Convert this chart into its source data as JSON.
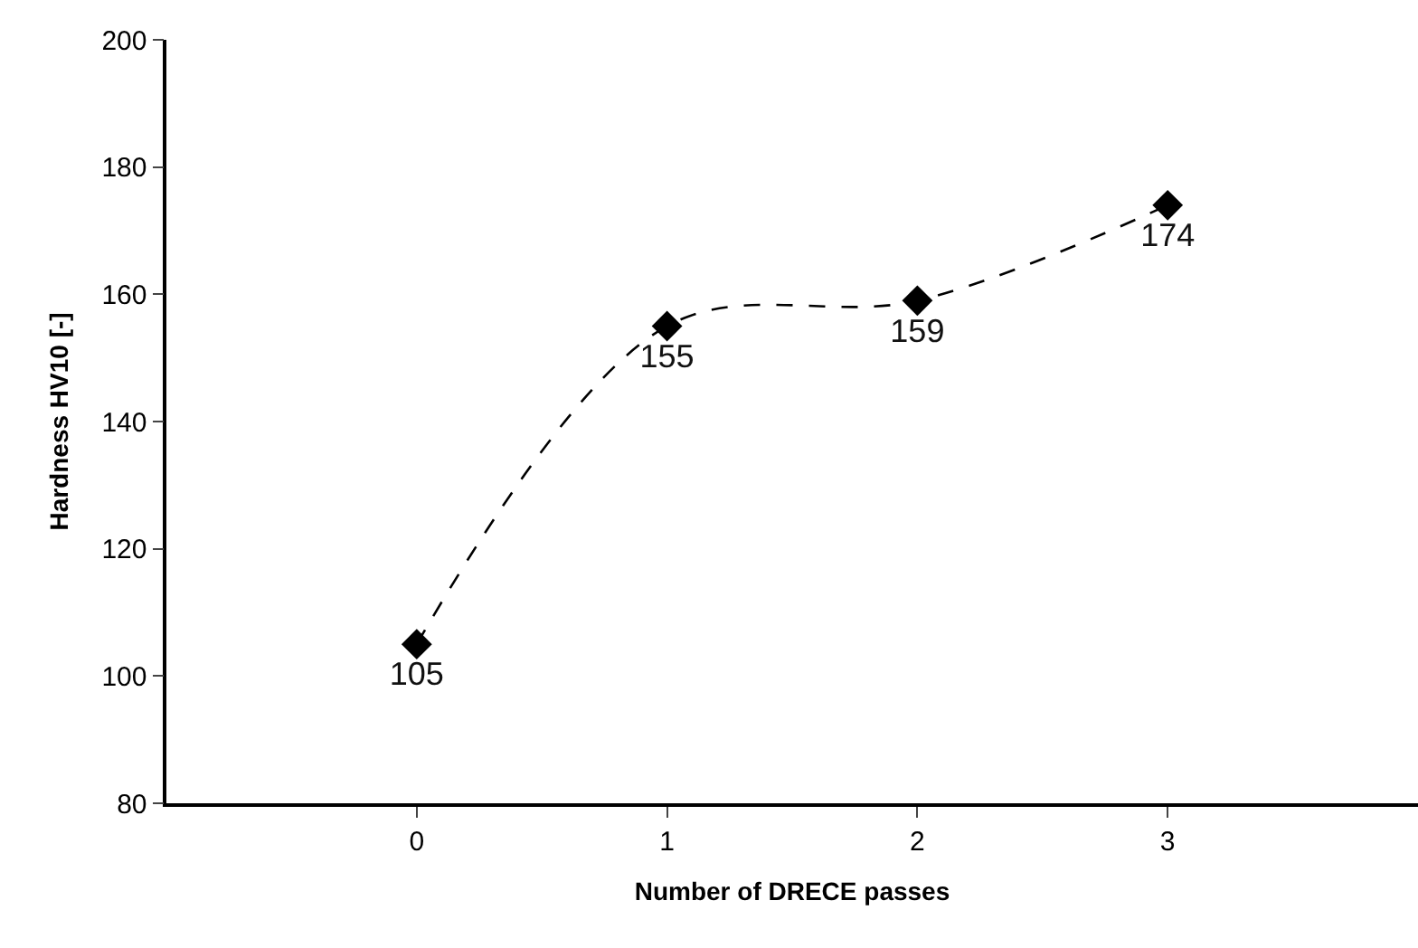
{
  "chart_data": {
    "type": "line",
    "xlabel": "Number of DRECE passes",
    "ylabel": "Hardness HV10 [-]",
    "x": [
      0,
      1,
      2,
      3
    ],
    "series": [
      {
        "color": "#000000",
        "values": [
          105,
          155,
          159,
          174
        ]
      }
    ],
    "xlim": [
      -1,
      4
    ],
    "xticks": [
      0,
      1,
      2,
      3
    ],
    "ylim": [
      80,
      200
    ],
    "yticks": [
      80,
      100,
      120,
      140,
      160,
      180,
      200
    ],
    "marker": "diamond",
    "line_style": "dashed",
    "data_labels": true
  }
}
